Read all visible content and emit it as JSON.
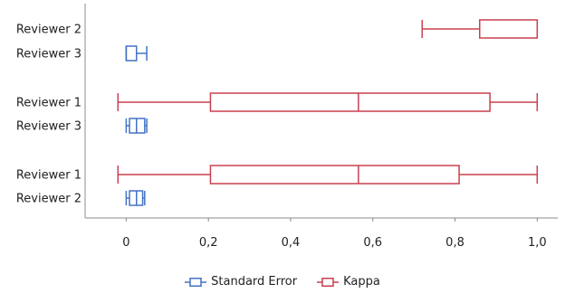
{
  "chart_data": {
    "type": "boxplot",
    "orientation": "horizontal",
    "xlim": [
      -0.1,
      1.05
    ],
    "x_ticks": [
      "0",
      "0,2",
      "0,4",
      "0,6",
      "0,8",
      "1,0"
    ],
    "x_tick_values": [
      0,
      0.2,
      0.4,
      0.6,
      0.8,
      1.0
    ],
    "series": [
      {
        "name": "Standard Error",
        "color": "#4472C4"
      },
      {
        "name": "Kappa",
        "color": "#C8404F"
      }
    ],
    "rows": [
      {
        "label": "Reviewer 2",
        "series": "Kappa",
        "min": 0.72,
        "q1": 0.86,
        "median": 0.86,
        "q3": 1.0,
        "max": 1.0
      },
      {
        "label": "Reviewer 3",
        "series": "Standard Error",
        "min": 0.0,
        "q1": 0.0,
        "median": 0.0,
        "q3": 0.025,
        "max": 0.05
      },
      {
        "label": "Reviewer 1",
        "series": "Kappa",
        "min": -0.02,
        "q1": 0.205,
        "median": 0.565,
        "q3": 0.885,
        "max": 1.0
      },
      {
        "label": "Reviewer 3",
        "series": "Standard Error",
        "min": 0.0,
        "q1": 0.008,
        "median": 0.025,
        "q3": 0.045,
        "max": 0.05
      },
      {
        "label": "Reviewer 1",
        "series": "Kappa",
        "min": -0.02,
        "q1": 0.205,
        "median": 0.565,
        "q3": 0.81,
        "max": 1.0
      },
      {
        "label": "Reviewer 2",
        "series": "Standard Error",
        "min": 0.0,
        "q1": 0.008,
        "median": 0.025,
        "q3": 0.04,
        "max": 0.045
      }
    ],
    "legend_position": "bottom",
    "grid": false
  }
}
